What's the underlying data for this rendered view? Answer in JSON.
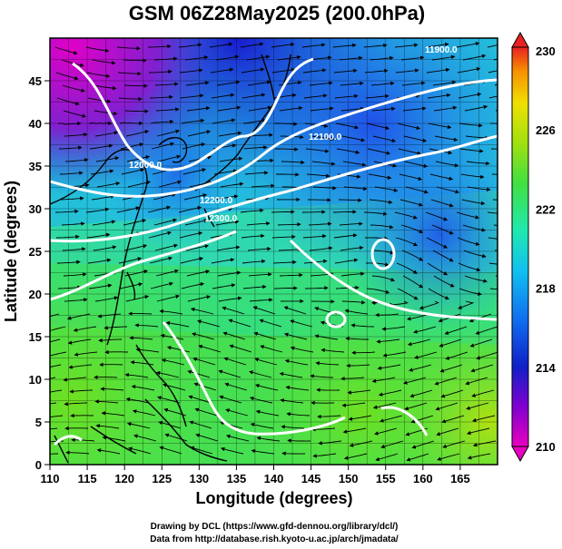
{
  "title": "GSM 06Z28May2025 (200.0hPa)",
  "xlabel": "Longitude (degrees)",
  "ylabel": "Latitude  (degrees)",
  "credits": [
    "Drawing by DCL (https://www.gfd-dennou.org/library/dcl/)",
    "Data from http://database.rish.kyoto-u.ac.jp/arch/jmadata/"
  ],
  "map": {
    "lon_range": [
      110,
      170
    ],
    "lat_range": [
      0,
      50
    ],
    "lon_ticks": [
      "110",
      "115",
      "120",
      "125",
      "130",
      "135",
      "140",
      "145",
      "150",
      "155",
      "160",
      "165"
    ],
    "lat_ticks": [
      "0",
      "5",
      "10",
      "15",
      "20",
      "25",
      "30",
      "35",
      "40",
      "45"
    ],
    "contour_labels": [
      "12000.0",
      "12100.0",
      "12000.0",
      "12200.0",
      "12300.0",
      "11900.0"
    ],
    "colors": {
      "land_coast": "#000000",
      "contour": "#ffffff"
    }
  },
  "colorbar": {
    "labels": [
      "230",
      "226",
      "222",
      "218",
      "214",
      "210"
    ],
    "stops": [
      "#d800c8",
      "#1020c0",
      "#10a8f0",
      "#20e8c0",
      "#30e030",
      "#90e010",
      "#e8e000",
      "#f89000",
      "#e82020"
    ]
  }
}
